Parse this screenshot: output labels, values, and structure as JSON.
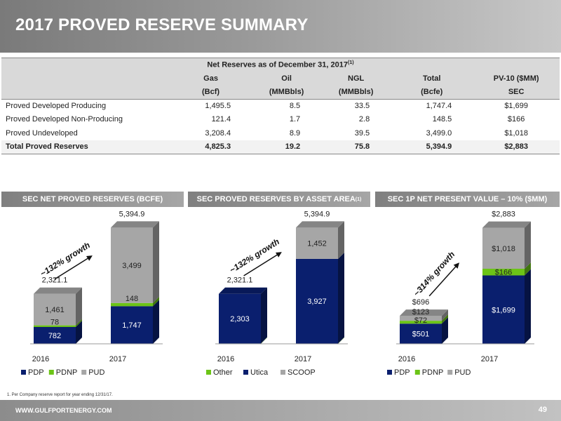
{
  "title": "2017 PROVED RESERVE SUMMARY",
  "table": {
    "caption": "Net Reserves as of  December 31, 2017",
    "caption_note": "(1)",
    "headers": [
      {
        "top": "Gas",
        "bottom": "(Bcf)"
      },
      {
        "top": "Oil",
        "bottom": "(MMBbls)"
      },
      {
        "top": "NGL",
        "bottom": "(MMBbls)"
      },
      {
        "top": "Total",
        "bottom": "(Bcfe)"
      },
      {
        "top": "PV-10 ($MM)",
        "bottom": "SEC"
      }
    ],
    "rows": [
      {
        "label": "Proved Developed Producing",
        "cells": [
          "1,495.5",
          "8.5",
          "33.5",
          "1,747.4",
          "$1,699"
        ]
      },
      {
        "label": "Proved Developed Non-Producing",
        "cells": [
          "121.4",
          "1.7",
          "2.8",
          "148.5",
          "$166"
        ]
      },
      {
        "label": "Proved Undeveloped",
        "cells": [
          "3,208.4",
          "8.9",
          "39.5",
          "3,499.0",
          "$1,018"
        ]
      },
      {
        "label": "Total Proved Reserves",
        "cells": [
          "4,825.3",
          "19.2",
          "75.8",
          "5,394.9",
          "$2,883"
        ]
      }
    ]
  },
  "panels": [
    {
      "title": "SEC NET PROVED RESERVES (BCFE)",
      "note": ""
    },
    {
      "title": "SEC PROVED RESERVES BY ASSET AREA",
      "note": "(1)"
    },
    {
      "title": "SEC 1P NET PRESENT VALUE – 10% ($MM)",
      "note": ""
    }
  ],
  "chart_data": [
    {
      "type": "bar",
      "stacked": true,
      "title": "SEC NET PROVED RESERVES (BCFE)",
      "categories": [
        "2016",
        "2017"
      ],
      "series": [
        {
          "name": "PDP",
          "values": [
            782,
            1747
          ],
          "labels": [
            "782",
            "1,747"
          ],
          "color": "#0a1f6e"
        },
        {
          "name": "PDNP",
          "values": [
            78,
            148
          ],
          "labels": [
            "78",
            "148"
          ],
          "color": "#6cc417"
        },
        {
          "name": "PUD",
          "values": [
            1461,
            3499
          ],
          "labels": [
            "1,461",
            "3,499"
          ],
          "color": "#a6a6a6"
        }
      ],
      "totals": [
        "2,321.1",
        "5,394.9"
      ],
      "annotation": "~132% growth",
      "ylim": [
        0,
        5700
      ]
    },
    {
      "type": "bar",
      "stacked": true,
      "title": "SEC PROVED RESERVES BY ASSET AREA",
      "categories": [
        "2016",
        "2017"
      ],
      "series": [
        {
          "name": "Other",
          "values": [
            18,
            16
          ],
          "labels": [
            "18",
            "16"
          ],
          "color": "#6cc417"
        },
        {
          "name": "Utica",
          "values": [
            2303,
            3927
          ],
          "labels": [
            "2,303",
            "3,927"
          ],
          "color": "#0a1f6e"
        },
        {
          "name": "SCOOP",
          "values": [
            0,
            1452
          ],
          "labels": [
            "",
            "1,452"
          ],
          "color": "#a6a6a6"
        }
      ],
      "totals": [
        "2,321.1",
        "5,394.9"
      ],
      "annotation": "~132% growth",
      "ylim": [
        0,
        5700
      ]
    },
    {
      "type": "bar",
      "stacked": true,
      "title": "SEC 1P NET PRESENT VALUE – 10% ($MM)",
      "categories": [
        "2016",
        "2017"
      ],
      "series": [
        {
          "name": "PDP",
          "values": [
            501,
            1699
          ],
          "labels": [
            "$501",
            "$1,699"
          ],
          "color": "#0a1f6e"
        },
        {
          "name": "PDNP",
          "values": [
            72,
            166
          ],
          "labels": [
            "$72",
            "$166"
          ],
          "color": "#6cc417"
        },
        {
          "name": "PUD",
          "values": [
            123,
            1018
          ],
          "labels": [
            "$123",
            "$1,018"
          ],
          "color": "#a6a6a6"
        }
      ],
      "totals": [
        "$696",
        "$2,883"
      ],
      "annotation": "~314% growth",
      "ylim": [
        0,
        3050
      ]
    }
  ],
  "footnote": "1.      Per Company reserve report for year ending 12/31/17.",
  "footer": {
    "url": "WWW.GULFPORTENERGY.COM",
    "page": "49"
  }
}
